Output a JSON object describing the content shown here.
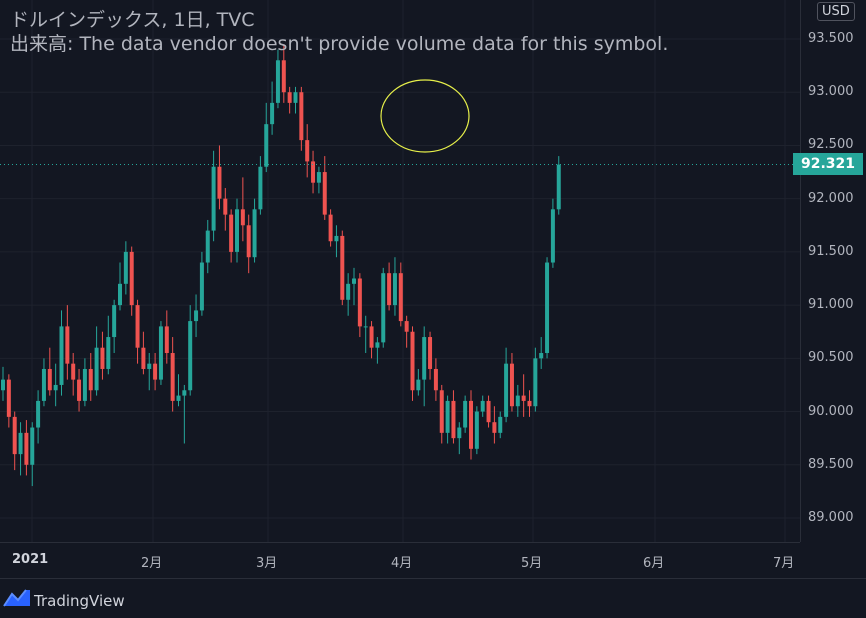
{
  "legend": {
    "title": "ドルインデックス, 1日, TVC",
    "volume_note": "出来高: The data vendor doesn't provide volume data for this symbol."
  },
  "price_scale": {
    "currency": "USD",
    "ticks": [
      "93.500",
      "93.000",
      "92.500",
      "92.000",
      "91.500",
      "91.000",
      "90.500",
      "90.000",
      "89.500",
      "89.000"
    ],
    "last_price": "92.321"
  },
  "time_scale": {
    "labels": [
      "2021",
      "2月",
      "3月",
      "4月",
      "5月",
      "6月",
      "7月"
    ]
  },
  "footer": {
    "brand": "TradingView"
  },
  "colors": {
    "up": "#26a69a",
    "down": "#ef5350",
    "background": "#131722",
    "annotation": "#e6ef4a"
  },
  "chart_data": {
    "type": "candlestick",
    "title": "ドルインデックス, 1日, TVC",
    "xlabel": "",
    "ylabel": "",
    "ylim": [
      88.83,
      93.9
    ],
    "x_axis": [
      "2021",
      "2月",
      "3月",
      "4月",
      "5月",
      "6月",
      "7月"
    ],
    "last_price": 92.321,
    "annotation": "yellow ellipse circling the late-March peak",
    "series": [
      {
        "ohlc": [
          [
            90.2,
            90.42,
            90.1,
            90.3
          ],
          [
            90.3,
            90.35,
            89.85,
            89.95
          ],
          [
            89.95,
            90.0,
            89.45,
            89.6
          ],
          [
            89.6,
            89.9,
            89.4,
            89.8
          ],
          [
            89.8,
            89.92,
            89.4,
            89.5
          ],
          [
            89.5,
            89.9,
            89.3,
            89.85
          ],
          [
            89.85,
            90.2,
            89.7,
            90.1
          ],
          [
            90.1,
            90.5,
            90.05,
            90.4
          ],
          [
            90.4,
            90.6,
            90.15,
            90.2
          ],
          [
            90.2,
            90.45,
            90.05,
            90.25
          ],
          [
            90.25,
            90.95,
            90.15,
            90.8
          ],
          [
            90.8,
            91.0,
            90.3,
            90.45
          ],
          [
            90.45,
            90.55,
            90.15,
            90.3
          ],
          [
            90.3,
            90.4,
            90.0,
            90.1
          ],
          [
            90.1,
            90.5,
            90.05,
            90.4
          ],
          [
            90.4,
            90.55,
            90.1,
            90.2
          ],
          [
            90.2,
            90.8,
            90.15,
            90.6
          ],
          [
            90.6,
            90.75,
            90.3,
            90.4
          ],
          [
            90.4,
            90.9,
            90.35,
            90.7
          ],
          [
            90.7,
            91.05,
            90.55,
            91.0
          ],
          [
            91.0,
            91.4,
            90.95,
            91.2
          ],
          [
            91.2,
            91.6,
            91.1,
            91.5
          ],
          [
            91.5,
            91.55,
            90.9,
            91.0
          ],
          [
            91.0,
            91.05,
            90.45,
            90.6
          ],
          [
            90.6,
            90.75,
            90.35,
            90.4
          ],
          [
            90.4,
            90.55,
            90.2,
            90.45
          ],
          [
            90.45,
            90.55,
            90.2,
            90.3
          ],
          [
            90.3,
            90.85,
            90.25,
            90.8
          ],
          [
            90.8,
            90.95,
            90.45,
            90.55
          ],
          [
            90.55,
            90.7,
            90.0,
            90.1
          ],
          [
            90.1,
            90.35,
            90.05,
            90.15
          ],
          [
            90.15,
            90.25,
            89.7,
            90.2
          ],
          [
            90.2,
            91.0,
            90.15,
            90.85
          ],
          [
            90.85,
            91.1,
            90.7,
            90.95
          ],
          [
            90.95,
            91.5,
            90.9,
            91.4
          ],
          [
            91.4,
            91.8,
            91.3,
            91.7
          ],
          [
            91.7,
            92.45,
            91.6,
            92.3
          ],
          [
            92.3,
            92.5,
            91.9,
            92.0
          ],
          [
            92.0,
            92.1,
            91.7,
            91.85
          ],
          [
            91.85,
            91.9,
            91.4,
            91.5
          ],
          [
            91.5,
            92.0,
            91.4,
            91.9
          ],
          [
            91.9,
            92.2,
            91.6,
            91.75
          ],
          [
            91.75,
            91.85,
            91.3,
            91.45
          ],
          [
            91.45,
            92.0,
            91.4,
            91.9
          ],
          [
            91.9,
            92.4,
            91.85,
            92.3
          ],
          [
            92.3,
            92.9,
            92.25,
            92.7
          ],
          [
            92.7,
            93.1,
            92.6,
            92.9
          ],
          [
            92.9,
            93.4,
            92.85,
            93.3
          ],
          [
            93.3,
            93.45,
            92.9,
            93.0
          ],
          [
            93.0,
            93.05,
            92.8,
            92.9
          ],
          [
            92.9,
            93.05,
            92.8,
            93.0
          ],
          [
            93.0,
            93.05,
            92.45,
            92.55
          ],
          [
            92.55,
            92.7,
            92.2,
            92.35
          ],
          [
            92.35,
            92.45,
            92.05,
            92.15
          ],
          [
            92.15,
            92.3,
            92.05,
            92.25
          ],
          [
            92.25,
            92.4,
            91.8,
            91.85
          ],
          [
            91.85,
            91.9,
            91.55,
            91.6
          ],
          [
            91.6,
            91.75,
            91.45,
            91.65
          ],
          [
            91.65,
            91.7,
            91.0,
            91.05
          ],
          [
            91.05,
            91.3,
            90.9,
            91.2
          ],
          [
            91.2,
            91.35,
            91.0,
            91.25
          ],
          [
            91.25,
            91.3,
            90.7,
            90.8
          ],
          [
            90.8,
            90.9,
            90.55,
            90.8
          ],
          [
            90.8,
            90.85,
            90.5,
            90.6
          ],
          [
            90.6,
            90.7,
            90.45,
            90.65
          ],
          [
            90.65,
            91.35,
            90.6,
            91.3
          ],
          [
            91.3,
            91.4,
            90.95,
            91.0
          ],
          [
            91.0,
            91.45,
            90.9,
            91.3
          ],
          [
            91.3,
            91.4,
            90.8,
            90.85
          ],
          [
            90.85,
            90.9,
            90.6,
            90.75
          ],
          [
            90.75,
            90.8,
            90.1,
            90.2
          ],
          [
            90.2,
            90.4,
            90.15,
            90.3
          ],
          [
            90.3,
            90.8,
            90.05,
            90.7
          ],
          [
            90.7,
            90.75,
            90.3,
            90.4
          ],
          [
            90.4,
            90.5,
            90.1,
            90.2
          ],
          [
            90.2,
            90.25,
            89.7,
            89.8
          ],
          [
            89.8,
            90.15,
            89.7,
            90.1
          ],
          [
            90.1,
            90.2,
            89.7,
            89.75
          ],
          [
            89.75,
            89.9,
            89.6,
            89.85
          ],
          [
            89.85,
            90.15,
            89.8,
            90.1
          ],
          [
            90.1,
            90.2,
            89.55,
            89.65
          ],
          [
            89.65,
            90.05,
            89.6,
            90.0
          ],
          [
            90.0,
            90.15,
            89.95,
            90.1
          ],
          [
            90.1,
            90.15,
            89.85,
            89.9
          ],
          [
            89.9,
            90.05,
            89.7,
            89.8
          ],
          [
            89.8,
            90.0,
            89.75,
            89.95
          ],
          [
            89.95,
            90.6,
            89.9,
            90.45
          ],
          [
            90.45,
            90.55,
            90.0,
            90.05
          ],
          [
            90.05,
            90.25,
            89.95,
            90.15
          ],
          [
            90.15,
            90.35,
            89.95,
            90.1
          ],
          [
            90.1,
            90.2,
            89.95,
            90.05
          ],
          [
            90.05,
            90.6,
            90.0,
            90.5
          ],
          [
            90.5,
            90.7,
            90.4,
            90.55
          ],
          [
            90.55,
            91.45,
            90.5,
            91.4
          ],
          [
            91.4,
            92.0,
            91.35,
            91.9
          ],
          [
            91.9,
            92.4,
            91.85,
            92.32
          ]
        ]
      }
    ]
  }
}
